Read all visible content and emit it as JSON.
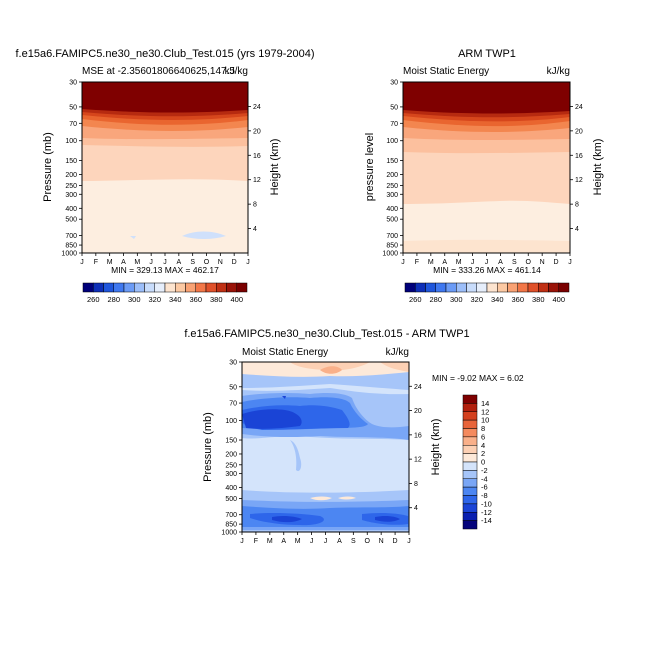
{
  "colorbar_ticks_top": [
    "260",
    "280",
    "300",
    "320",
    "340",
    "360",
    "380",
    "400"
  ],
  "colorbar_ticks_diff": [
    "14",
    "12",
    "10",
    "8",
    "6",
    "4",
    "2",
    "0",
    "-2",
    "-4",
    "-6",
    "-8",
    "-10",
    "-12",
    "-14"
  ],
  "colors": {
    "top_scale": [
      "#00007a",
      "#0d2fb8",
      "#1f56dc",
      "#3f78f0",
      "#6b9bf6",
      "#9cbef9",
      "#c8dcfb",
      "#e6eefb",
      "#fde4cf",
      "#fcc9a3",
      "#f9a274",
      "#f27748",
      "#e0512a",
      "#c03014",
      "#9a1308",
      "#7a0000"
    ],
    "diff_scale": [
      "#05047b",
      "#0a1fb0",
      "#1a44d6",
      "#2e66ea",
      "#4c86f2",
      "#79a6f6",
      "#a6c5f9",
      "#d4e4fb",
      "#fde9d9",
      "#fcd0b4",
      "#f9b08a",
      "#f48a5e",
      "#e8643a",
      "#d4401e",
      "#b2200d",
      "#7f0000"
    ]
  },
  "chart_data": [
    {
      "type": "heatmap",
      "title": "f.e15a6.FAMIPC5.ne30_ne30.Club_Test.015 (yrs 1979-2004)",
      "left_subtitle": "MSE at -2.35601806640625,147.5",
      "right_subtitle": "kJ/kg",
      "ylabel": "Pressure (mb)",
      "ylabel_right": "Height (km)",
      "x_tick_labels": [
        "J",
        "F",
        "M",
        "A",
        "M",
        "J",
        "J",
        "A",
        "S",
        "O",
        "N",
        "D",
        "J"
      ],
      "y_tick_labels": [
        "30",
        "50",
        "70",
        "100",
        "150",
        "200",
        "250",
        "300",
        "400",
        "500",
        "700",
        "850",
        "1000"
      ],
      "y_tick_values": [
        30,
        50,
        70,
        100,
        150,
        200,
        250,
        300,
        400,
        500,
        700,
        850,
        1000
      ],
      "height_tick_labels": [
        "24",
        "20",
        "16",
        "12",
        "8",
        "4"
      ],
      "height_tick_values": [
        24,
        20,
        16,
        12,
        8,
        4
      ],
      "stats_text": "MIN = 329.13   MAX = 462.17",
      "min": 329.13,
      "max": 462.17
    },
    {
      "type": "heatmap",
      "title": "ARM TWP1",
      "left_subtitle": "Moist Static Energy",
      "right_subtitle": "kJ/kg",
      "ylabel": "pressure level",
      "ylabel_right": "Height (km)",
      "x_tick_labels": [
        "J",
        "F",
        "M",
        "A",
        "M",
        "J",
        "J",
        "A",
        "S",
        "O",
        "N",
        "D",
        "J"
      ],
      "y_tick_labels": [
        "30",
        "50",
        "70",
        "100",
        "150",
        "200",
        "250",
        "300",
        "400",
        "500",
        "700",
        "850",
        "1000"
      ],
      "y_tick_values": [
        30,
        50,
        70,
        100,
        150,
        200,
        250,
        300,
        400,
        500,
        700,
        850,
        1000
      ],
      "height_tick_labels": [
        "24",
        "20",
        "16",
        "12",
        "8",
        "4"
      ],
      "height_tick_values": [
        24,
        20,
        16,
        12,
        8,
        4
      ],
      "stats_text": "MIN = 333.26   MAX = 461.14",
      "min": 333.26,
      "max": 461.14
    },
    {
      "type": "heatmap",
      "title": "f.e15a6.FAMIPC5.ne30_ne30.Club_Test.015 - ARM TWP1",
      "left_subtitle": "Moist Static Energy",
      "right_subtitle": "kJ/kg",
      "ylabel": "Pressure (mb)",
      "ylabel_right": "Height (km)",
      "x_tick_labels": [
        "J",
        "F",
        "M",
        "A",
        "M",
        "J",
        "J",
        "A",
        "S",
        "O",
        "N",
        "D",
        "J"
      ],
      "y_tick_labels": [
        "30",
        "50",
        "70",
        "100",
        "150",
        "200",
        "250",
        "300",
        "400",
        "500",
        "700",
        "850",
        "1000"
      ],
      "y_tick_values": [
        30,
        50,
        70,
        100,
        150,
        200,
        250,
        300,
        400,
        500,
        700,
        850,
        1000
      ],
      "height_tick_labels": [
        "24",
        "20",
        "16",
        "12",
        "8",
        "4"
      ],
      "height_tick_values": [
        24,
        20,
        16,
        12,
        8,
        4
      ],
      "stats_text": "MIN =  -9.02   MAX =   6.02",
      "min": -9.02,
      "max": 6.02
    }
  ]
}
